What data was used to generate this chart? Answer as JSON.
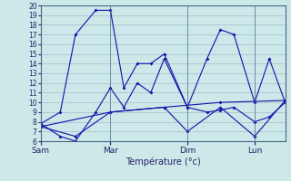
{
  "xlabel": "Température (°c)",
  "bg_color": "#cce8e8",
  "line_color": "#1111aa",
  "grid_color": "#99bbcc",
  "ylim": [
    6,
    20
  ],
  "yticks": [
    6,
    7,
    8,
    9,
    10,
    11,
    12,
    13,
    14,
    15,
    16,
    17,
    18,
    19,
    20
  ],
  "xtick_labels": [
    "Sam",
    "Mar",
    "Dim",
    "Lun"
  ],
  "xtick_positions": [
    0.0,
    0.285,
    0.6,
    0.875
  ],
  "series": [
    {
      "x": [
        0.0,
        0.08,
        0.142,
        0.225,
        0.285,
        0.34,
        0.395,
        0.45,
        0.505,
        0.6,
        0.68,
        0.735,
        0.79,
        0.875,
        0.935,
        1.0
      ],
      "y": [
        7.8,
        9.0,
        17.0,
        19.5,
        19.5,
        11.5,
        14.0,
        14.0,
        15.0,
        9.5,
        14.5,
        17.5,
        17.0,
        10.0,
        14.5,
        10.0
      ]
    },
    {
      "x": [
        0.0,
        0.08,
        0.142,
        0.225,
        0.285,
        0.34,
        0.395,
        0.45,
        0.505,
        0.6,
        0.68,
        0.735,
        0.79,
        0.875,
        0.935,
        1.0
      ],
      "y": [
        7.8,
        6.5,
        6.0,
        9.0,
        11.5,
        9.5,
        12.0,
        11.0,
        14.5,
        9.5,
        9.0,
        9.2,
        9.5,
        8.0,
        8.5,
        10.0
      ]
    },
    {
      "x": [
        0.0,
        0.142,
        0.285,
        0.505,
        0.6,
        0.735,
        0.875,
        1.0
      ],
      "y": [
        7.5,
        6.5,
        9.0,
        9.5,
        7.0,
        9.5,
        6.5,
        10.2
      ]
    },
    {
      "x": [
        0.0,
        0.285,
        0.505,
        0.735,
        1.0
      ],
      "y": [
        7.5,
        9.0,
        9.5,
        10.0,
        10.2
      ]
    }
  ]
}
